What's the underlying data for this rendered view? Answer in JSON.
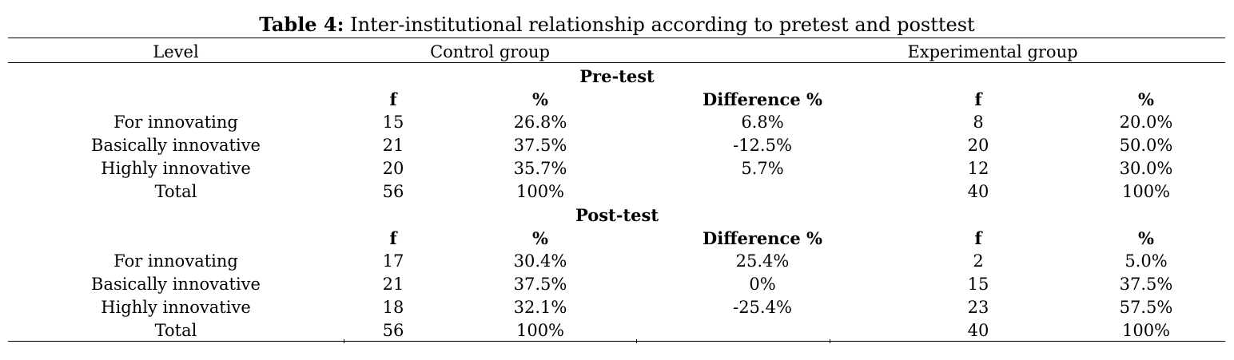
{
  "caption": {
    "label": "Table 4:",
    "text": " Inter-institutional relationship according to pretest and posttest"
  },
  "header": {
    "level": "Level",
    "control": "Control group",
    "experimental": "Experimental group"
  },
  "pretest": {
    "title": "Pre-test",
    "subheaders": [
      "f",
      "%",
      "Difference %",
      "f",
      "%"
    ],
    "rows": [
      [
        "For innovating",
        "15",
        "26.8%",
        "6.8%",
        "8",
        "20.0%"
      ],
      [
        "Basically innovative",
        "21",
        "37.5%",
        "-12.5%",
        "20",
        "50.0%"
      ],
      [
        "Highly innovative",
        "20",
        "35.7%",
        "5.7%",
        "12",
        "30.0%"
      ],
      [
        "Total",
        "56",
        "100%",
        "",
        "40",
        "100%"
      ]
    ]
  },
  "posttest": {
    "title": "Post-test",
    "subheaders": [
      "f",
      "%",
      "Difference %",
      "f",
      "%"
    ],
    "rows": [
      [
        "For innovating",
        "17",
        "30.4%",
        "25.4%",
        "2",
        "5.0%"
      ],
      [
        "Basically innovative",
        "21",
        "37.5%",
        "0%",
        "15",
        "37.5%"
      ],
      [
        "Highly innovative",
        "18",
        "32.1%",
        "-25.4%",
        "23",
        "57.5%"
      ],
      [
        "Total",
        "56",
        "100%",
        "",
        "40",
        "100%"
      ]
    ]
  }
}
